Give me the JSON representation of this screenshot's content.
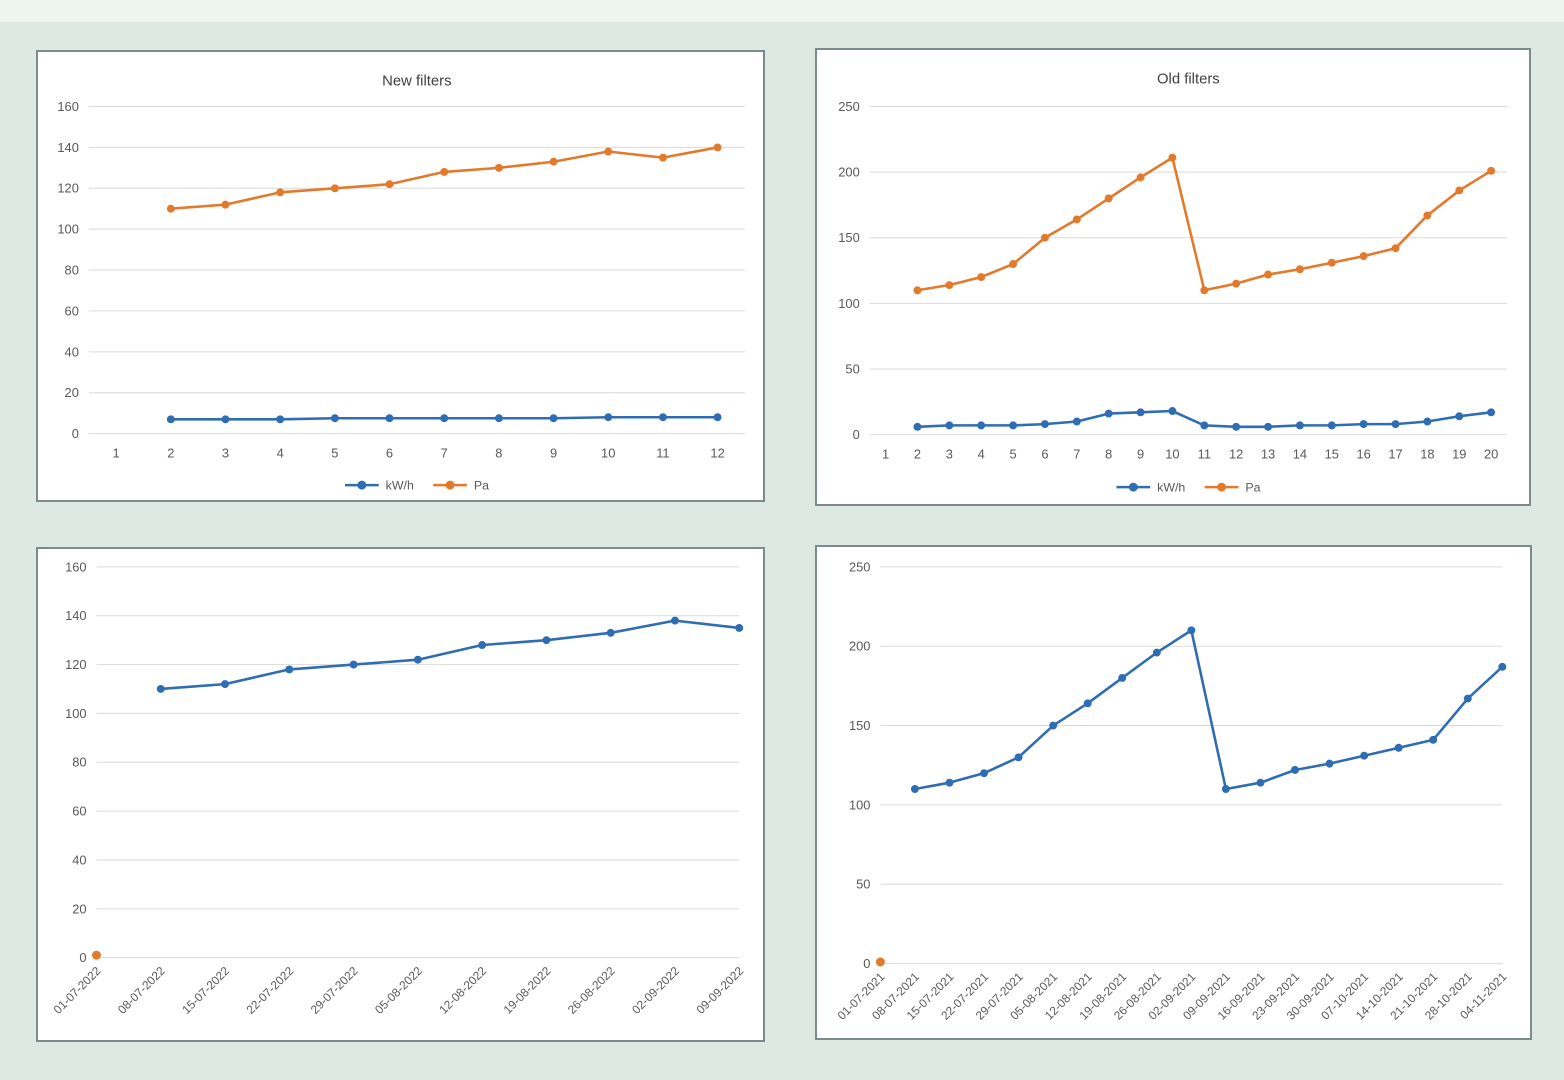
{
  "page": {
    "background_color": "#dfe9e4",
    "top_strip_color": "#eef4f0"
  },
  "style": {
    "panel_background": "#ffffff",
    "panel_border_color": "#7c8b8b",
    "grid_color": "#dadada",
    "tick_label_color": "#595959",
    "title_color": "#3f3f3f",
    "series_blue": "#2e6db4",
    "series_orange": "#e3792a"
  },
  "chart_data": [
    {
      "id": "new_filters",
      "type": "line",
      "title": "New filters",
      "categories": [
        "1",
        "2",
        "3",
        "4",
        "5",
        "6",
        "7",
        "8",
        "9",
        "10",
        "11",
        "12"
      ],
      "ylim": [
        0,
        160
      ],
      "yticks": [
        0,
        20,
        40,
        60,
        80,
        100,
        120,
        140,
        160
      ],
      "grid": true,
      "legend_position": "bottom",
      "x_axis_align": "between",
      "x_label_rotation": 0,
      "series": [
        {
          "name": "kW/h",
          "color": "#2e6db4",
          "start_index": 1,
          "values": [
            7,
            7,
            7,
            7.5,
            7.5,
            7.5,
            7.5,
            7.5,
            8,
            8,
            8
          ]
        },
        {
          "name": "Pa",
          "color": "#e3792a",
          "start_index": 1,
          "values": [
            110,
            112,
            118,
            120,
            122,
            128,
            130,
            133,
            138,
            135,
            140
          ]
        }
      ]
    },
    {
      "id": "old_filters",
      "type": "line",
      "title": "Old filters",
      "categories": [
        "1",
        "2",
        "3",
        "4",
        "5",
        "6",
        "7",
        "8",
        "9",
        "10",
        "11",
        "12",
        "13",
        "14",
        "15",
        "16",
        "17",
        "18",
        "19",
        "20"
      ],
      "ylim": [
        0,
        250
      ],
      "yticks": [
        0,
        50,
        100,
        150,
        200,
        250
      ],
      "grid": true,
      "legend_position": "bottom",
      "x_axis_align": "between",
      "x_label_rotation": 0,
      "series": [
        {
          "name": "kW/h",
          "color": "#2e6db4",
          "start_index": 1,
          "values": [
            6,
            7,
            7,
            7,
            8,
            10,
            16,
            17,
            18,
            7,
            6,
            6,
            7,
            7,
            8,
            8,
            10,
            14,
            17
          ]
        },
        {
          "name": "Pa",
          "color": "#e3792a",
          "start_index": 1,
          "values": [
            110,
            114,
            120,
            130,
            150,
            164,
            180,
            196,
            211,
            110,
            115,
            122,
            126,
            131,
            136,
            142,
            167,
            186,
            201
          ]
        }
      ]
    },
    {
      "id": "new_filters_weekly",
      "type": "line",
      "title": null,
      "categories": [
        "01-07-2022",
        "08-07-2022",
        "15-07-2022",
        "22-07-2022",
        "29-07-2022",
        "05-08-2022",
        "12-08-2022",
        "19-08-2022",
        "26-08-2022",
        "02-09-2022",
        "09-09-2022"
      ],
      "ylim": [
        0,
        160
      ],
      "yticks": [
        0,
        20,
        40,
        60,
        80,
        100,
        120,
        140,
        160
      ],
      "grid": true,
      "legend_position": null,
      "x_axis_align": "edge",
      "x_label_rotation": 45,
      "series": [
        {
          "name": "",
          "color": "#2e6db4",
          "start_index": 1,
          "values": [
            110,
            112,
            118,
            120,
            122,
            128,
            130,
            133,
            138,
            135
          ]
        },
        {
          "name": "",
          "color": "#e3792a",
          "start_index": 0,
          "values": [
            1
          ]
        }
      ]
    },
    {
      "id": "old_filters_weekly",
      "type": "line",
      "title": null,
      "categories": [
        "01-07-2021",
        "08-07-2021",
        "15-07-2021",
        "22-07-2021",
        "29-07-2021",
        "05-08-2021",
        "12-08-2021",
        "19-08-2021",
        "26-08-2021",
        "02-09-2021",
        "09-09-2021",
        "16-09-2021",
        "23-09-2021",
        "30-09-2021",
        "07-10-2021",
        "14-10-2021",
        "21-10-2021",
        "28-10-2021",
        "04-11-2021"
      ],
      "ylim": [
        0,
        250
      ],
      "yticks": [
        0,
        50,
        100,
        150,
        200,
        250
      ],
      "grid": true,
      "legend_position": null,
      "x_axis_align": "edge",
      "x_label_rotation": 45,
      "series": [
        {
          "name": "",
          "color": "#2e6db4",
          "start_index": 1,
          "values": [
            110,
            114,
            120,
            130,
            150,
            164,
            180,
            196,
            210,
            110,
            114,
            122,
            126,
            131,
            136,
            141,
            167,
            187
          ]
        },
        {
          "name": "",
          "color": "#e3792a",
          "start_index": 0,
          "values": [
            1
          ]
        }
      ]
    }
  ]
}
